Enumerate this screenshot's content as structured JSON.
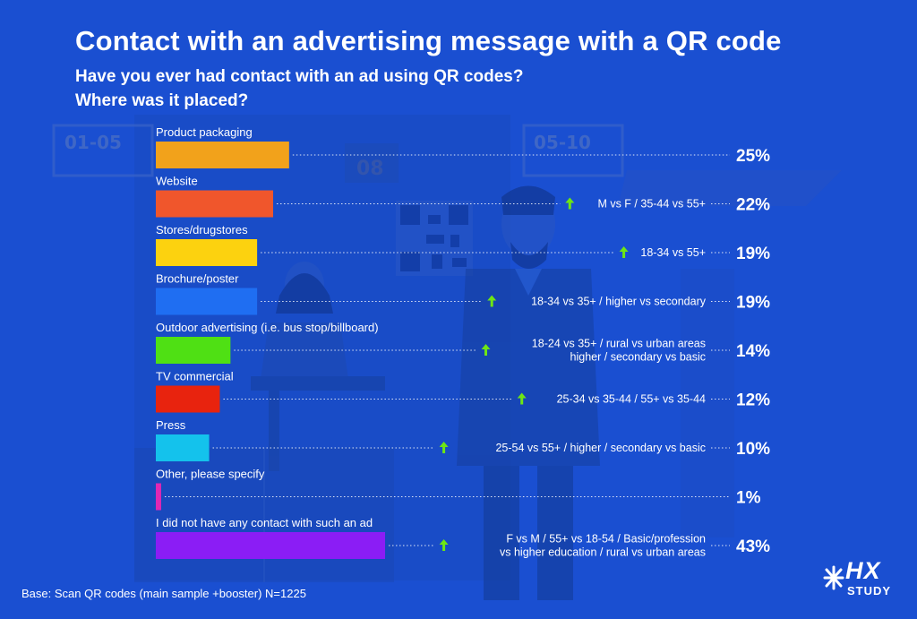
{
  "header": {
    "title": "Contact with an advertising message with a QR code",
    "subtitle_line1": "Have you ever had contact with an ad using QR codes?",
    "subtitle_line2": "Where was it placed?"
  },
  "background": {
    "board_left": "01-05",
    "board_right": "05-10",
    "board_mid": "08"
  },
  "footer": {
    "base": "Base: Scan QR codes (main sample +booster) N=1225"
  },
  "logo": {
    "brand": "HX",
    "sub": "STUDY"
  },
  "colors": {
    "background": "#1a4fd1",
    "up_arrow": "#6ee614"
  },
  "chart_data": {
    "type": "bar",
    "orientation": "horizontal",
    "categories": [
      "Product packaging",
      "Website",
      "Stores/drugstores",
      "Brochure/poster",
      "Outdoor advertising (i.e. bus stop/billboard)",
      "TV commercial",
      "Press",
      "Other, please specify",
      "I did not have any contact with such an ad"
    ],
    "values": [
      25,
      22,
      19,
      19,
      14,
      12,
      10,
      1,
      43
    ],
    "value_labels": [
      "25%",
      "22%",
      "19%",
      "19%",
      "14%",
      "12%",
      "10%",
      "1%",
      "43%"
    ],
    "colors": [
      "#f2a21b",
      "#f0562c",
      "#fcd20f",
      "#1f6ef2",
      "#4fe014",
      "#e8230e",
      "#14c2ec",
      "#e027b4",
      "#8b1df5"
    ],
    "annotations": [
      [],
      [
        "M vs F / 35-44 vs 55+"
      ],
      [
        "18-34 vs 55+"
      ],
      [
        "18-34 vs 35+ / higher vs secondary"
      ],
      [
        "18-24 vs 35+ / rural vs urban areas",
        "higher / secondary vs basic"
      ],
      [
        "25-34 vs 35-44 / 55+ vs 35-44"
      ],
      [
        "25-54 vs 55+ / higher / secondary vs basic"
      ],
      [],
      [
        "F vs M / 55+ vs 18-54 / Basic/profession",
        "vs higher education / rural vs urban areas"
      ]
    ],
    "xlim": [
      0,
      43
    ],
    "grid": false,
    "legend": "none"
  }
}
